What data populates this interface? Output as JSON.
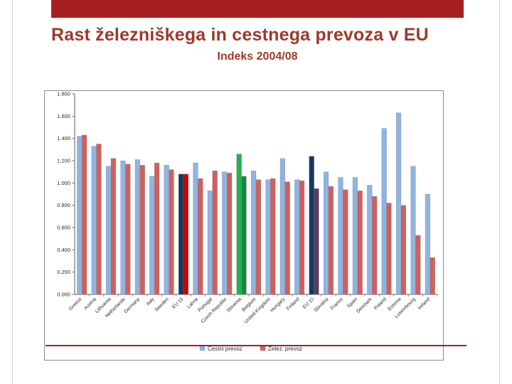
{
  "slide": {
    "title": "Rast železniškega in cestnega prevoza v EU",
    "subtitle": "Indeks 2004/08"
  },
  "theme": {
    "accent_red": "#a6201f",
    "title_color": "#9c3a2b",
    "chart_border": "#8c8c8c"
  },
  "chart_data": {
    "type": "bar",
    "title": "",
    "xlabel": "",
    "ylabel": "",
    "ylim": [
      0,
      1.8
    ],
    "grid": false,
    "legend_position": "bottom",
    "yticks": [
      "0.000",
      "0.200",
      "0.400",
      "0.600",
      "0.800",
      "1.000",
      "1.200",
      "1.400",
      "1.600",
      "1.800"
    ],
    "categories": [
      "Greece",
      "Austria",
      "Lithuania",
      "Netherlands",
      "Germany",
      "Italy",
      "Sweden",
      "EU 15",
      "Latvia",
      "Portugal",
      "Czech Republic",
      "Slovenia",
      "Belgium",
      "United Kingdom",
      "Hungary",
      "Finland",
      "EU 10",
      "Slovakia",
      "France",
      "Spain",
      "Denmark",
      "Poland",
      "Estonia",
      "Luxembourg",
      "Ireland"
    ],
    "series": [
      {
        "name": "Cestni prevoz",
        "color": "#8eb4e3",
        "values": [
          1.42,
          1.33,
          1.15,
          1.2,
          1.21,
          1.06,
          1.16,
          1.08,
          1.18,
          0.93,
          1.1,
          1.26,
          1.11,
          1.03,
          1.22,
          1.03,
          1.24,
          1.1,
          1.05,
          1.05,
          0.98,
          1.49,
          1.63,
          1.15,
          0.9
        ]
      },
      {
        "name": "Želez. prevoz",
        "color": "#d0605d",
        "values": [
          1.43,
          1.35,
          1.22,
          1.17,
          1.16,
          1.18,
          1.12,
          1.08,
          1.04,
          1.11,
          1.09,
          1.06,
          1.03,
          1.04,
          1.01,
          1.02,
          0.95,
          0.97,
          0.94,
          0.93,
          0.88,
          0.82,
          0.8,
          0.53,
          0.33
        ]
      }
    ],
    "highlight_overrides": [
      {
        "index": 7,
        "category": "EU 15",
        "colors": [
          "#17375d",
          "#cc0000"
        ]
      },
      {
        "index": 11,
        "category": "Slovenia",
        "colors": [
          "#23b14d",
          "#12893f"
        ]
      },
      {
        "index": 16,
        "category": "EU 10",
        "colors": [
          "#17375d",
          "#5a3a66"
        ]
      }
    ]
  }
}
